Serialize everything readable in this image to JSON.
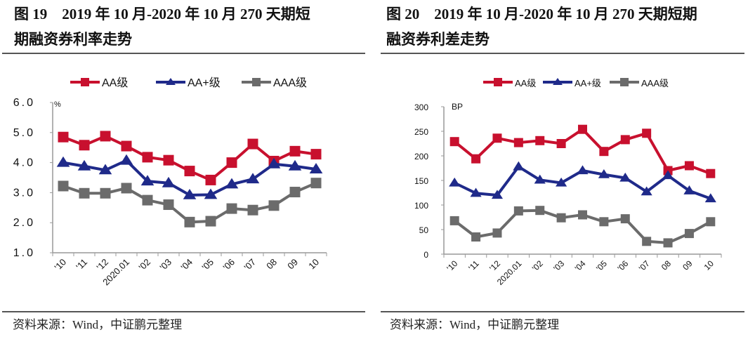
{
  "colors": {
    "AA": "#c8102e",
    "AA+": "#1f2a8a",
    "AAA": "#6b6b6b",
    "axis": "#999999"
  },
  "chart_data": [
    {
      "type": "line",
      "title_line1": "图 19　2019 年 10 月-2020 年 10 月 270 天期短",
      "title_line2": "期融资券利率走势",
      "unit_label": "%",
      "categories": [
        "'10",
        "'11",
        "'12",
        "2020.01",
        "'02",
        "'03",
        "'04",
        "'05",
        "'06",
        "'07",
        "08",
        "09",
        "10"
      ],
      "ylim": [
        1.0,
        6.0
      ],
      "yticks": [
        "1.0",
        "2.0",
        "3.0",
        "4.0",
        "5.0",
        "6.0"
      ],
      "ytick_values": [
        1,
        2,
        3,
        4,
        5,
        6
      ],
      "legend": [
        "AA级",
        "AA+级",
        "AAA级"
      ],
      "legend_position": "top",
      "grid": false,
      "series": [
        {
          "name": "AA级",
          "key": "AA",
          "marker": "square",
          "values": [
            4.85,
            4.58,
            4.88,
            4.55,
            4.18,
            4.08,
            3.72,
            3.42,
            4.0,
            4.62,
            4.05,
            4.38,
            4.28
          ]
        },
        {
          "name": "AA+级",
          "key": "AA+",
          "marker": "triangle",
          "values": [
            4.0,
            3.88,
            3.75,
            4.07,
            3.38,
            3.32,
            2.92,
            2.93,
            3.28,
            3.45,
            3.95,
            3.88,
            3.78
          ]
        },
        {
          "name": "AAA级",
          "key": "AAA",
          "marker": "square",
          "values": [
            3.22,
            2.98,
            2.98,
            3.15,
            2.75,
            2.6,
            2.02,
            2.05,
            2.47,
            2.42,
            2.57,
            3.02,
            3.32
          ]
        }
      ],
      "source": "资料来源：Wind，中证鹏元整理"
    },
    {
      "type": "line",
      "title_line1": "图 20　2019 年 10 月-2020 年 10 月 270 天期短期",
      "title_line2": "融资券利差走势",
      "unit_label": "BP",
      "categories": [
        "'10",
        "'11",
        "'12",
        "2020.01",
        "'02",
        "'03",
        "'04",
        "'05",
        "'06",
        "'07",
        "08",
        "09",
        "10"
      ],
      "ylim": [
        0,
        300
      ],
      "yticks": [
        "0",
        "50",
        "100",
        "150",
        "200",
        "250",
        "300"
      ],
      "ytick_values": [
        0,
        50,
        100,
        150,
        200,
        250,
        300
      ],
      "legend": [
        "AA级",
        "AA+级",
        "AAA级"
      ],
      "legend_position": "top-right",
      "grid": false,
      "series": [
        {
          "name": "AA级",
          "key": "AA",
          "marker": "square",
          "values": [
            229,
            194,
            236,
            227,
            231,
            225,
            254,
            209,
            233,
            246,
            170,
            180,
            164
          ]
        },
        {
          "name": "AA+级",
          "key": "AA+",
          "marker": "triangle",
          "values": [
            145,
            124,
            120,
            178,
            151,
            145,
            170,
            162,
            155,
            127,
            160,
            129,
            113
          ]
        },
        {
          "name": "AAA级",
          "key": "AAA",
          "marker": "square",
          "values": [
            68,
            35,
            43,
            88,
            89,
            74,
            80,
            66,
            72,
            26,
            23,
            42,
            66
          ]
        }
      ],
      "source": "资料来源：Wind，中证鹏元整理"
    }
  ]
}
